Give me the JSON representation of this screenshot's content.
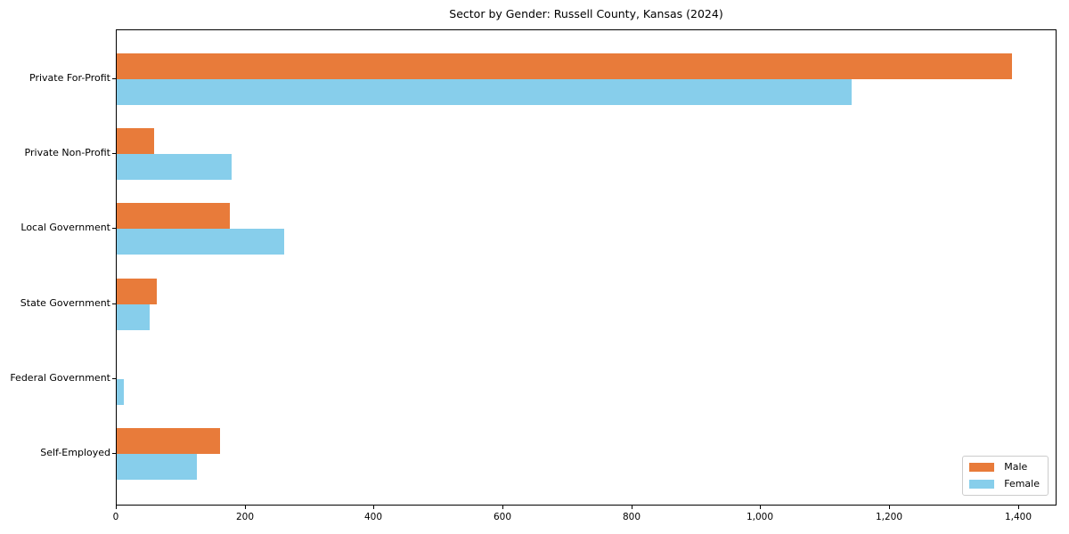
{
  "chart_data": {
    "type": "bar",
    "orientation": "horizontal",
    "title": "Sector by Gender: Russell County, Kansas (2024)",
    "categories": [
      "Private For-Profit",
      "Private Non-Profit",
      "Local Government",
      "State Government",
      "Federal Government",
      "Self-Employed"
    ],
    "series": [
      {
        "name": "Male",
        "color": "#e87b3a",
        "values": [
          1390,
          58,
          176,
          62,
          0,
          161
        ]
      },
      {
        "name": "Female",
        "color": "#87ceeb",
        "values": [
          1140,
          178,
          260,
          51,
          11,
          125
        ]
      }
    ],
    "xlabel": "",
    "ylabel": "",
    "xlim": [
      0,
      1460
    ],
    "xticks": [
      0,
      200,
      400,
      600,
      800,
      1000,
      1200,
      1400
    ],
    "xtick_labels": [
      "0",
      "200",
      "400",
      "600",
      "800",
      "1,000",
      "1,200",
      "1,400"
    ],
    "grid": false,
    "legend": {
      "position": "lower right",
      "entries": [
        "Male",
        "Female"
      ]
    }
  }
}
